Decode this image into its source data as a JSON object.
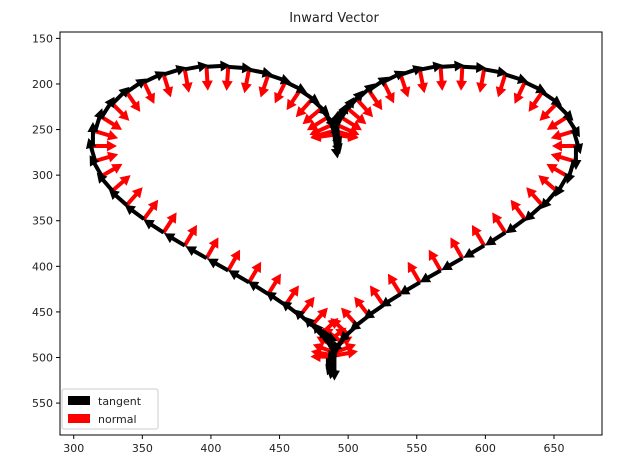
{
  "chart_data": {
    "type": "quiver",
    "title": "Inward Vector",
    "xlabel": "",
    "ylabel": "",
    "xlim": [
      290,
      685
    ],
    "ylim": [
      585,
      143
    ],
    "y_inverted": true,
    "xticks": [
      300,
      350,
      400,
      450,
      500,
      550,
      600,
      650
    ],
    "yticks": [
      150,
      200,
      250,
      300,
      350,
      400,
      450,
      500,
      550
    ],
    "grid": false,
    "legend_position": "lower-left",
    "curve_color": "#1f77b4",
    "series": [
      {
        "name": "tangent",
        "color": "#000000"
      },
      {
        "name": "normal",
        "color": "#ff0000"
      }
    ],
    "curve": {
      "type": "heart",
      "x_center": 490,
      "x_scale": 11,
      "y_offset": 312,
      "y_scale": 11,
      "samples": 80
    },
    "arrow_length": 24
  },
  "legend": {
    "tangent_label": "tangent",
    "normal_label": "normal"
  }
}
